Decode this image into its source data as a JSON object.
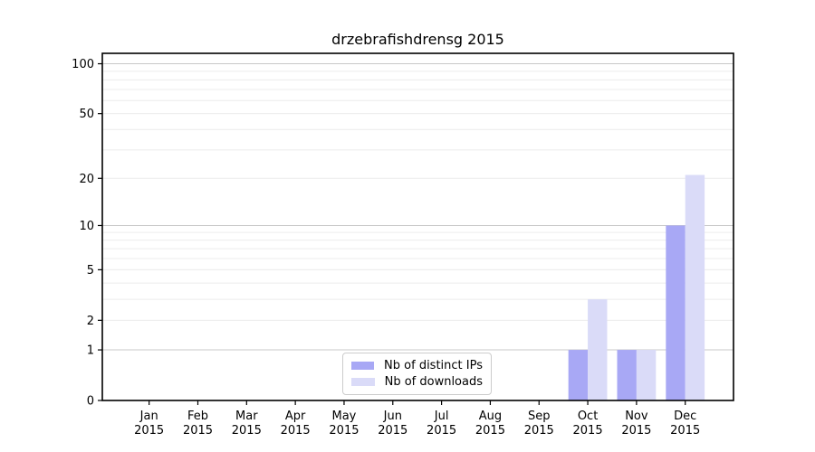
{
  "chart_data": {
    "type": "bar",
    "title": "drzebrafishdrensg 2015",
    "categories": [
      "Jan",
      "Feb",
      "Mar",
      "Apr",
      "May",
      "Jun",
      "Jul",
      "Aug",
      "Sep",
      "Oct",
      "Nov",
      "Dec"
    ],
    "year": "2015",
    "series": [
      {
        "name": "Nb of distinct IPs",
        "color": "#a8a8f5",
        "values": [
          0,
          0,
          0,
          0,
          0,
          0,
          0,
          0,
          0,
          1,
          1,
          10
        ]
      },
      {
        "name": "Nb of downloads",
        "color": "#dadbf8",
        "values": [
          0,
          0,
          0,
          0,
          0,
          0,
          0,
          0,
          0,
          3,
          1,
          21
        ]
      }
    ],
    "y_scale": "log10(1+v)",
    "ylim": [
      0,
      115.5
    ],
    "y_ticks": [
      0,
      1,
      2,
      5,
      10,
      20,
      50,
      100
    ],
    "y_minor_gridlines": [
      2,
      3,
      4,
      5,
      6,
      7,
      8,
      9,
      20,
      30,
      40,
      50,
      60,
      70,
      80,
      90
    ],
    "y_major_gridlines": [
      1,
      10,
      100
    ],
    "legend": {
      "position": "lower center inside plot",
      "entries": [
        "Nb of distinct IPs",
        "Nb of downloads"
      ]
    },
    "colors": {
      "spine": "#000000",
      "tick": "#000000",
      "minor_grid": "#ececec",
      "major_grid": "#c8c8c8",
      "background": "#ffffff"
    }
  }
}
